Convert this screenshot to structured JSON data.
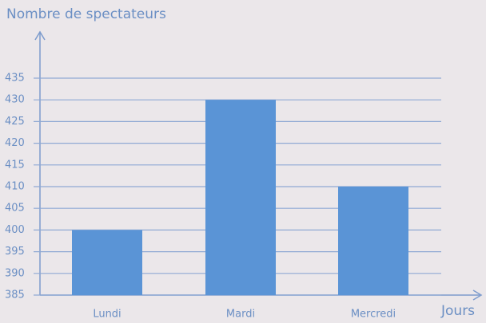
{
  "chart_data": {
    "type": "bar",
    "y_label": "Nombre de spectateurs",
    "x_label": "Jours",
    "categories": [
      "Lundi",
      "Mardi",
      "Mercredi"
    ],
    "values": [
      400,
      430,
      410
    ],
    "color": "#5a94d6",
    "ylim": [
      385,
      435
    ],
    "yticks": [
      385,
      390,
      395,
      400,
      405,
      410,
      415,
      420,
      425,
      430,
      435
    ],
    "grid": true
  }
}
